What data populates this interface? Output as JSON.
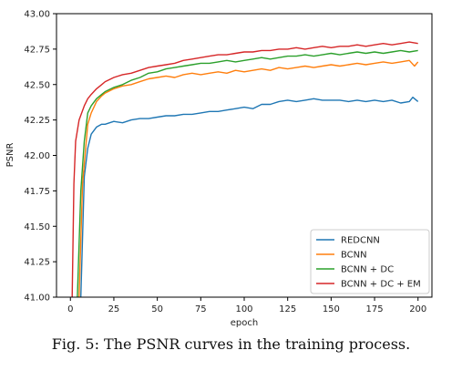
{
  "caption": "Fig. 5: The PSNR curves in the training process.",
  "chart_data": {
    "type": "line",
    "xlabel": "epoch",
    "ylabel": "PSNR",
    "xlim": [
      -8,
      208
    ],
    "ylim": [
      41.0,
      43.0
    ],
    "xticks": [
      0,
      25,
      50,
      75,
      100,
      125,
      150,
      175,
      200
    ],
    "yticks": [
      41.0,
      41.25,
      41.5,
      41.75,
      42.0,
      42.25,
      42.5,
      42.75,
      43.0
    ],
    "xtick_labels": [
      "0",
      "25",
      "50",
      "75",
      "100",
      "125",
      "150",
      "175",
      "200"
    ],
    "ytick_labels": [
      "41.00",
      "41.25",
      "41.50",
      "41.75",
      "42.00",
      "42.25",
      "42.50",
      "42.75",
      "43.00"
    ],
    "grid": false,
    "legend_position": "lower-right",
    "series": [
      {
        "name": "REDCNN",
        "color": "#1f77b4",
        "x": [
          6,
          8,
          10,
          12,
          15,
          18,
          20,
          25,
          30,
          35,
          40,
          45,
          50,
          55,
          60,
          65,
          70,
          75,
          80,
          85,
          90,
          95,
          100,
          105,
          110,
          115,
          120,
          125,
          130,
          135,
          140,
          145,
          150,
          155,
          160,
          165,
          170,
          175,
          180,
          185,
          190,
          195,
          197,
          200
        ],
        "y": [
          41.0,
          41.85,
          42.05,
          42.15,
          42.2,
          42.22,
          42.22,
          42.24,
          42.23,
          42.25,
          42.26,
          42.26,
          42.27,
          42.28,
          42.28,
          42.29,
          42.29,
          42.3,
          42.31,
          42.31,
          42.32,
          42.33,
          42.34,
          42.33,
          42.36,
          42.36,
          42.38,
          42.39,
          42.38,
          42.39,
          42.4,
          42.39,
          42.39,
          42.39,
          42.38,
          42.39,
          42.38,
          42.39,
          42.38,
          42.39,
          42.37,
          42.38,
          42.41,
          42.38
        ]
      },
      {
        "name": "BCNN",
        "color": "#ff7f0e",
        "x": [
          5,
          7,
          10,
          12,
          15,
          18,
          20,
          25,
          30,
          35,
          40,
          45,
          50,
          55,
          60,
          65,
          70,
          75,
          80,
          85,
          90,
          95,
          100,
          105,
          110,
          115,
          120,
          125,
          130,
          135,
          140,
          145,
          150,
          155,
          160,
          165,
          170,
          175,
          180,
          185,
          190,
          195,
          198,
          200
        ],
        "y": [
          41.0,
          41.8,
          42.22,
          42.3,
          42.38,
          42.42,
          42.44,
          42.47,
          42.49,
          42.5,
          42.52,
          42.54,
          42.55,
          42.56,
          42.55,
          42.57,
          42.58,
          42.57,
          42.58,
          42.59,
          42.58,
          42.6,
          42.59,
          42.6,
          42.61,
          42.6,
          42.62,
          42.61,
          42.62,
          42.63,
          42.62,
          42.63,
          42.64,
          42.63,
          42.64,
          42.65,
          42.64,
          42.65,
          42.66,
          42.65,
          42.66,
          42.67,
          42.63,
          42.66
        ]
      },
      {
        "name": "BCNN + DC",
        "color": "#2ca02c",
        "x": [
          4,
          6,
          8,
          10,
          12,
          15,
          18,
          20,
          25,
          30,
          35,
          40,
          45,
          50,
          55,
          60,
          65,
          70,
          75,
          80,
          85,
          90,
          95,
          100,
          105,
          110,
          115,
          120,
          125,
          130,
          135,
          140,
          145,
          150,
          155,
          160,
          165,
          170,
          175,
          180,
          185,
          190,
          195,
          200
        ],
        "y": [
          41.0,
          41.75,
          42.1,
          42.3,
          42.35,
          42.4,
          42.43,
          42.45,
          42.48,
          42.5,
          42.53,
          42.55,
          42.58,
          42.59,
          42.61,
          42.62,
          42.63,
          42.64,
          42.65,
          42.65,
          42.66,
          42.67,
          42.66,
          42.67,
          42.68,
          42.69,
          42.68,
          42.69,
          42.7,
          42.7,
          42.71,
          42.7,
          42.71,
          42.72,
          42.71,
          42.72,
          42.73,
          42.72,
          42.73,
          42.72,
          42.73,
          42.74,
          42.73,
          42.74
        ]
      },
      {
        "name": "BCNN + DC + EM",
        "color": "#d62728",
        "x": [
          1,
          2,
          3,
          5,
          8,
          10,
          12,
          15,
          18,
          20,
          25,
          30,
          35,
          40,
          45,
          50,
          55,
          60,
          65,
          70,
          75,
          80,
          85,
          90,
          95,
          100,
          105,
          110,
          115,
          120,
          125,
          130,
          135,
          140,
          145,
          150,
          155,
          160,
          165,
          170,
          175,
          180,
          185,
          190,
          195,
          200
        ],
        "y": [
          41.0,
          41.8,
          42.1,
          42.25,
          42.35,
          42.4,
          42.43,
          42.47,
          42.5,
          42.52,
          42.55,
          42.57,
          42.58,
          42.6,
          42.62,
          42.63,
          42.64,
          42.65,
          42.67,
          42.68,
          42.69,
          42.7,
          42.71,
          42.71,
          42.72,
          42.73,
          42.73,
          42.74,
          42.74,
          42.75,
          42.75,
          42.76,
          42.75,
          42.76,
          42.77,
          42.76,
          42.77,
          42.77,
          42.78,
          42.77,
          42.78,
          42.79,
          42.78,
          42.79,
          42.8,
          42.79
        ]
      }
    ]
  }
}
